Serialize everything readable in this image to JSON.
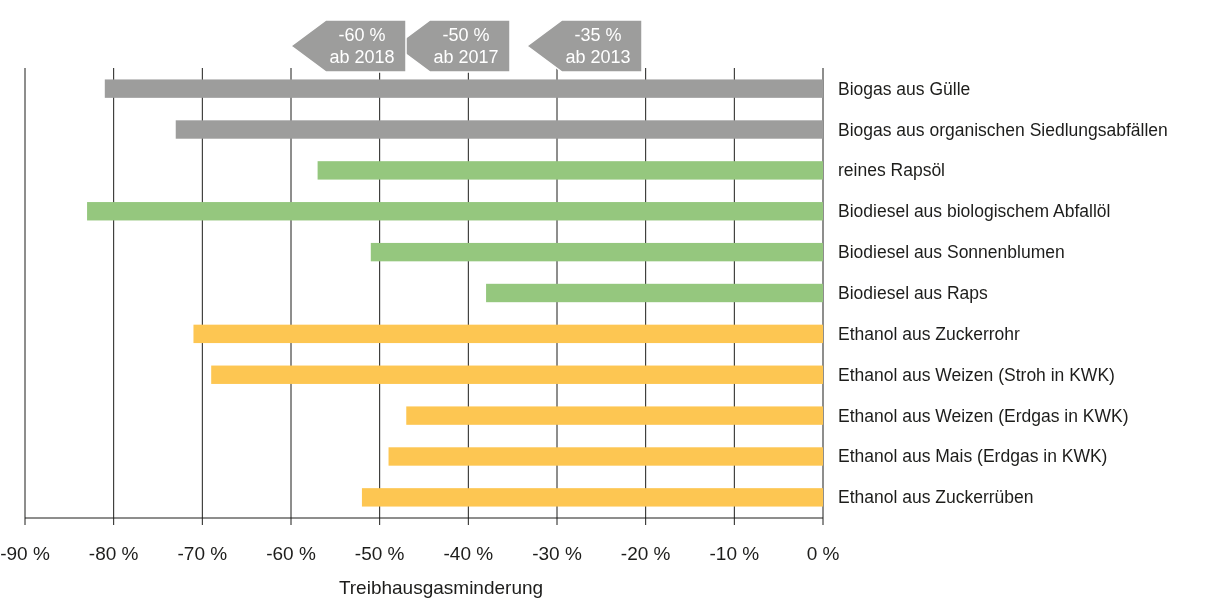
{
  "chart_data": {
    "type": "bar",
    "orientation": "horizontal",
    "xlabel": "Treibhausgasminderung",
    "categories": [
      "Biogas aus Gülle",
      "Biogas aus organischen Siedlungsabfällen",
      "reines Rapsöl",
      "Biodiesel aus biologischem Abfallöl",
      "Biodiesel aus Sonnenblumen",
      "Biodiesel aus Raps",
      "Ethanol aus Zuckerrohr",
      "Ethanol aus Weizen (Stroh in KWK)",
      "Ethanol aus Weizen (Erdgas in KWK)",
      "Ethanol aus Mais (Erdgas in KWK)",
      "Ethanol aus Zuckerrüben"
    ],
    "values": [
      -81,
      -73,
      -57,
      -83,
      -51,
      -38,
      -71,
      -69,
      -47,
      -49,
      -52
    ],
    "colors": [
      "#9d9d9c",
      "#9d9d9c",
      "#95c77e",
      "#95c77e",
      "#95c77e",
      "#95c77e",
      "#fdc652",
      "#fdc652",
      "#fdc652",
      "#fdc652",
      "#fdc652"
    ],
    "xlim": [
      -90,
      0
    ],
    "xticks": [
      {
        "value": -90,
        "label": "-90 %"
      },
      {
        "value": -80,
        "label": "-80 %"
      },
      {
        "value": -70,
        "label": "-70 %"
      },
      {
        "value": -60,
        "label": "-60 %"
      },
      {
        "value": -50,
        "label": "-50 %"
      },
      {
        "value": -40,
        "label": "-40 %"
      },
      {
        "value": -30,
        "label": "-30 %"
      },
      {
        "value": -20,
        "label": "-20 %"
      },
      {
        "value": -10,
        "label": "-10 %"
      },
      {
        "value": 0,
        "label": "0 %"
      }
    ],
    "grid": "x",
    "annotations": [
      "-60 %\nab 2018",
      "-50 %\nab 2017",
      "-35 %\nab 2013"
    ]
  }
}
